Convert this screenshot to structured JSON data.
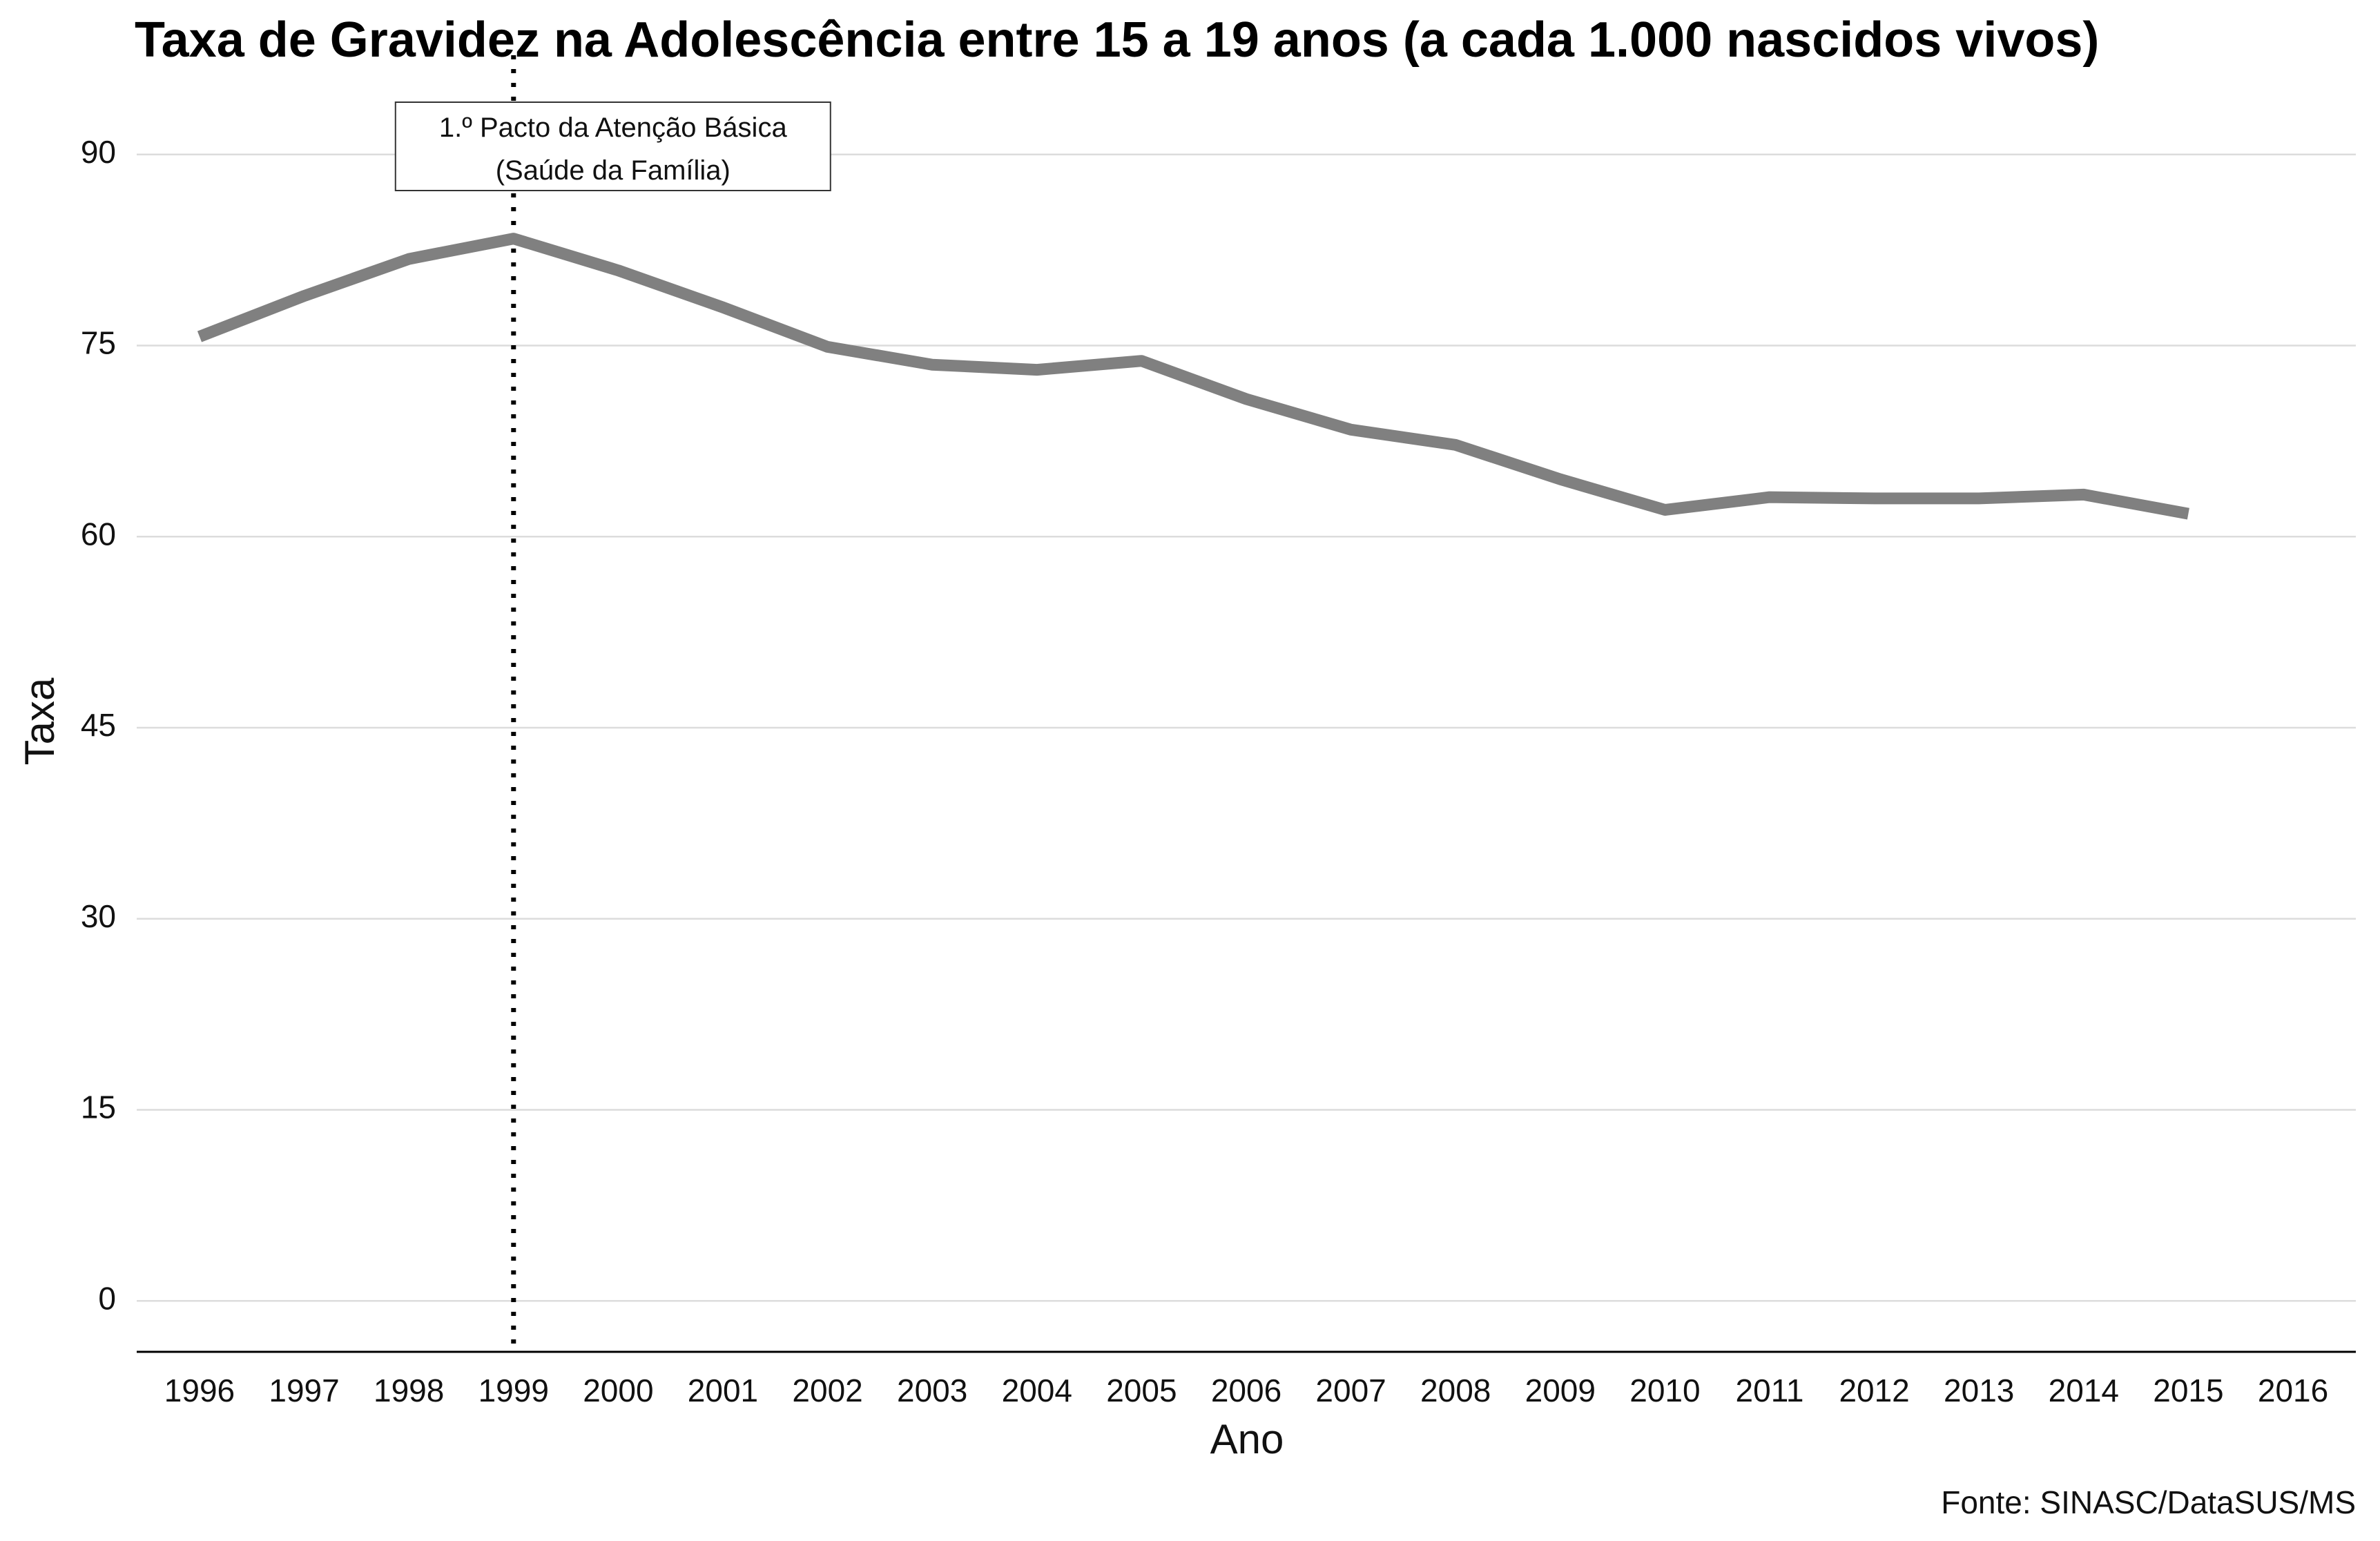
{
  "chart_data": {
    "type": "line",
    "title": "Taxa de Gravidez na Adolescência entre 15 a 19 anos (a cada 1.000 nascidos vivos)",
    "xlabel": "Ano",
    "ylabel": "Taxa",
    "caption": "Fonte: SINASC/DataSUS/MS",
    "categories": [
      "1996",
      "1997",
      "1998",
      "1999",
      "2000",
      "2001",
      "2002",
      "2003",
      "2004",
      "2005",
      "2006",
      "2007",
      "2008",
      "2009",
      "2010",
      "2011",
      "2012",
      "2013",
      "2014",
      "2015",
      "2016"
    ],
    "values": [
      75.7,
      78.9,
      81.8,
      83.4,
      80.9,
      78.0,
      74.9,
      73.5,
      73.1,
      73.8,
      70.8,
      68.4,
      67.2,
      64.5,
      62.1,
      63.1,
      63.0,
      63.0,
      63.3,
      61.8,
      null
    ],
    "yticks": [
      0,
      15,
      30,
      45,
      60,
      75,
      90
    ],
    "ylim": [
      -4,
      94
    ],
    "grid": true,
    "color": "#808080",
    "annotation": {
      "year": "1999",
      "line_style": "dotted",
      "lines": [
        "1.º Pacto da Atenção Básica",
        "(Saúde da Família)"
      ]
    }
  }
}
